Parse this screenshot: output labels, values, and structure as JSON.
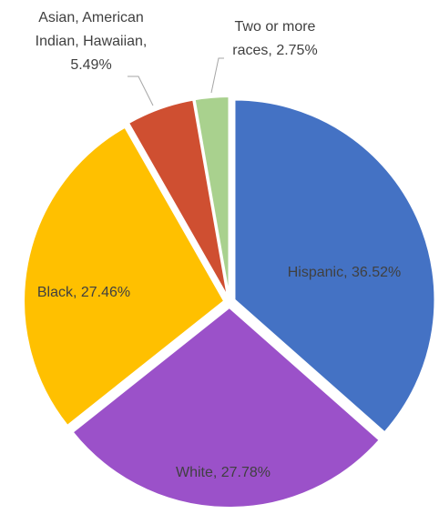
{
  "chart_data": {
    "type": "pie",
    "values": [
      36.52,
      27.78,
      27.46,
      5.49,
      2.75
    ],
    "value_labels": [
      [
        "Hispanic, 36.52%"
      ],
      [
        "White, 27.78%"
      ],
      [
        "Black, 27.46%"
      ],
      [
        "Asian, American",
        "Indian, Hawaiian,",
        "5.49%"
      ],
      [
        "Two or more",
        "races, 2.75%"
      ]
    ],
    "colors": [
      "#4472c4",
      "#9b51c9",
      "#ffc000",
      "#cf4f31",
      "#a9d18e"
    ]
  }
}
